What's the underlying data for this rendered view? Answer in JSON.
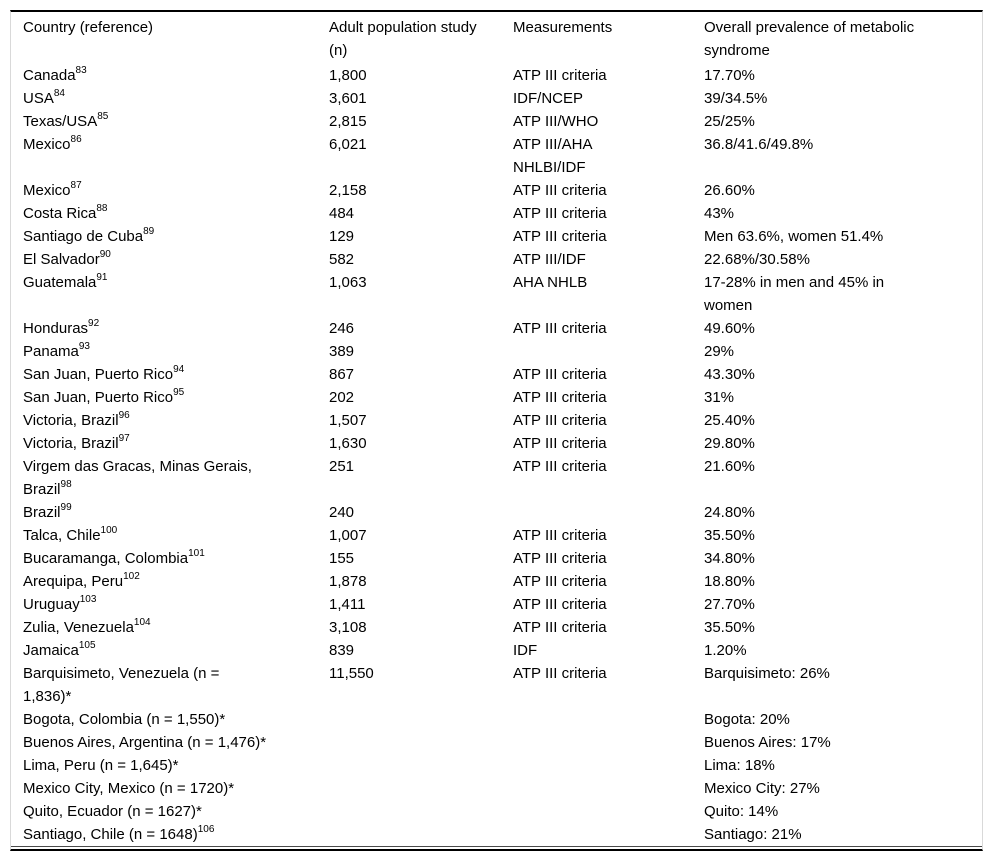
{
  "table": {
    "title_semantic": "Overall prevalence of metabolic syndrome by country",
    "columns": [
      "Country (reference)",
      "Adult population study\n(n)",
      "Measurements",
      "Overall prevalence of metabolic\nsyndrome"
    ],
    "rows": [
      {
        "country": "Canada",
        "sup": "83",
        "n": "1,800",
        "measurements": "ATP III criteria",
        "prevalence": "17.70%"
      },
      {
        "country": "USA",
        "sup": "84",
        "n": "3,601",
        "measurements": "IDF/NCEP",
        "prevalence": "39/34.5%"
      },
      {
        "country": "Texas/USA",
        "sup": "85",
        "n": "2,815",
        "measurements": "ATP III/WHO",
        "prevalence": "25/25%"
      },
      {
        "country": "Mexico",
        "sup": "86",
        "n": "6,021",
        "measurements": "ATP III/AHA\nNHLBI/IDF",
        "prevalence": "36.8/41.6/49.8%"
      },
      {
        "country": "Mexico",
        "sup": "87",
        "n": "2,158",
        "measurements": "ATP III criteria",
        "prevalence": "26.60%"
      },
      {
        "country": "Costa Rica",
        "sup": "88",
        "n": "484",
        "measurements": "ATP III criteria",
        "prevalence": "43%"
      },
      {
        "country": "Santiago de Cuba",
        "sup": "89",
        "n": "129",
        "measurements": "ATP III criteria",
        "prevalence": "Men 63.6%, women 51.4%"
      },
      {
        "country": "El Salvador",
        "sup": "90",
        "n": "582",
        "measurements": "ATP III/IDF",
        "prevalence": "22.68%/30.58%"
      },
      {
        "country": "Guatemala",
        "sup": "91",
        "n": "1,063",
        "measurements": "AHA NHLB",
        "prevalence": "17-28% in men and 45% in\nwomen"
      },
      {
        "country": "Honduras",
        "sup": "92",
        "n": "246",
        "measurements": "ATP III criteria",
        "prevalence": "49.60%"
      },
      {
        "country": "Panama",
        "sup": "93",
        "n": "389",
        "measurements": "",
        "prevalence": "29%"
      },
      {
        "country": "San Juan, Puerto Rico",
        "sup": "94",
        "n": "867",
        "measurements": "ATP III criteria",
        "prevalence": "43.30%"
      },
      {
        "country": "San Juan, Puerto Rico",
        "sup": "95",
        "n": "202",
        "measurements": "ATP III criteria",
        "prevalence": "31%"
      },
      {
        "country": "Victoria, Brazil",
        "sup": "96",
        "n": "1,507",
        "measurements": "ATP III criteria",
        "prevalence": "25.40%"
      },
      {
        "country": "Victoria, Brazil",
        "sup": "97",
        "n": "1,630",
        "measurements": "ATP III criteria",
        "prevalence": "29.80%"
      },
      {
        "country": "Virgem das Gracas, Minas Gerais,\nBrazil",
        "sup": "98",
        "n": "251",
        "measurements": "ATP III criteria",
        "prevalence": "21.60%"
      },
      {
        "country": "Brazil",
        "sup": "99",
        "n": "240",
        "measurements": "",
        "prevalence": "24.80%"
      },
      {
        "country": "Talca, Chile",
        "sup": "100",
        "n": "1,007",
        "measurements": "ATP III criteria",
        "prevalence": "35.50%"
      },
      {
        "country": "Bucaramanga, Colombia",
        "sup": "101",
        "n": "155",
        "measurements": "ATP III criteria",
        "prevalence": "34.80%"
      },
      {
        "country": "Arequipa, Peru",
        "sup": "102",
        "n": "1,878",
        "measurements": "ATP III criteria",
        "prevalence": "18.80%"
      },
      {
        "country": "Uruguay",
        "sup": "103",
        "n": "1,411",
        "measurements": "ATP III criteria",
        "prevalence": "27.70%"
      },
      {
        "country": "Zulia, Venezuela",
        "sup": "104",
        "n": "3,108",
        "measurements": "ATP III criteria",
        "prevalence": "35.50%"
      },
      {
        "country": "Jamaica",
        "sup": "105",
        "n": "839",
        "measurements": "IDF",
        "prevalence": "1.20%"
      },
      {
        "country": "Barquisimeto, Venezuela (n =\n1,836)*",
        "sup": "",
        "n": "11,550",
        "measurements": "ATP III criteria",
        "prevalence": "Barquisimeto: 26%"
      },
      {
        "country": "Bogota, Colombia (n = 1,550)*",
        "sup": "",
        "n": "",
        "measurements": "",
        "prevalence": "Bogota: 20%"
      },
      {
        "country": "Buenos Aires, Argentina (n = 1,476)*",
        "sup": "",
        "n": "",
        "measurements": "",
        "prevalence": "Buenos Aires: 17%"
      },
      {
        "country": "Lima, Peru (n = 1,645)*",
        "sup": "",
        "n": "",
        "measurements": "",
        "prevalence": "Lima: 18%"
      },
      {
        "country": "Mexico City, Mexico (n = 1720)*",
        "sup": "",
        "n": "",
        "measurements": "",
        "prevalence": "Mexico City: 27%"
      },
      {
        "country": "Quito, Ecuador (n = 1627)*",
        "sup": "",
        "n": "",
        "measurements": "",
        "prevalence": "Quito: 14%"
      },
      {
        "country": "Santiago, Chile (n = 1648)",
        "sup": "106",
        "n": "",
        "measurements": "",
        "prevalence": "Santiago: 21%"
      }
    ]
  }
}
